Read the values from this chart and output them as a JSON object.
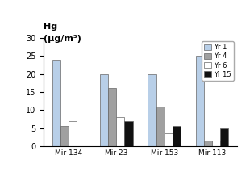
{
  "title_line1": "Hg",
  "title_line2": "(μg/m³)",
  "categories": [
    "Mir 134",
    "Mir 23",
    "Mir 153",
    "Mir 113"
  ],
  "series_names": [
    "Yr 1",
    "Yr 4",
    "Yr 6",
    "Yr 15"
  ],
  "series_values": [
    [
      24,
      20,
      20,
      25
    ],
    [
      5.5,
      16,
      11,
      1.5
    ],
    [
      7,
      8,
      3.5,
      1.5
    ],
    [
      0,
      7,
      5.5,
      5
    ]
  ],
  "colors": [
    "#b8cfe8",
    "#a0a0a0",
    "#ffffff",
    "#111111"
  ],
  "ylim": [
    0,
    30
  ],
  "yticks": [
    0,
    5,
    10,
    15,
    20,
    25,
    30
  ],
  "bar_width": 0.17,
  "background_color": "#ffffff",
  "edgecolor": "#666666"
}
